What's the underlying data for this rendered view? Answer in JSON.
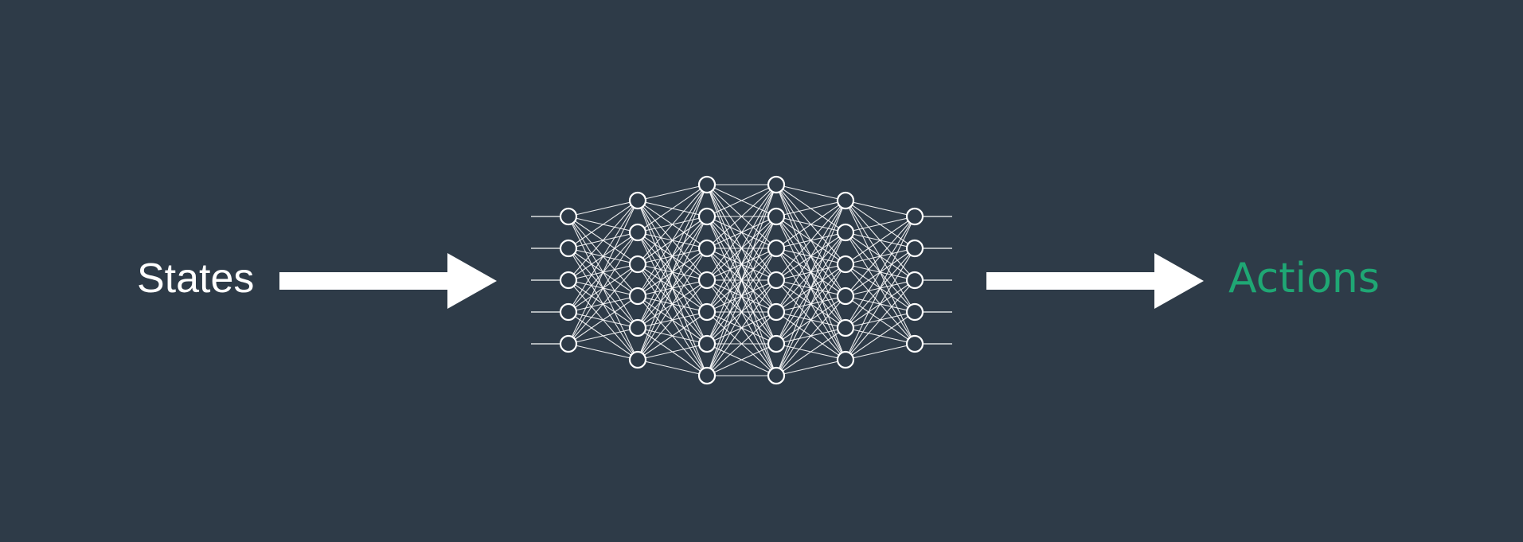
{
  "labels": {
    "input": "States",
    "output": "Actions"
  },
  "colors": {
    "background": "#2e3b48",
    "foreground": "#ffffff",
    "output_text": "#1fa774"
  },
  "network": {
    "layer_sizes": [
      5,
      6,
      7,
      7,
      6,
      5
    ],
    "has_input_stubs": true,
    "has_output_stubs": true,
    "fully_connected": true
  }
}
